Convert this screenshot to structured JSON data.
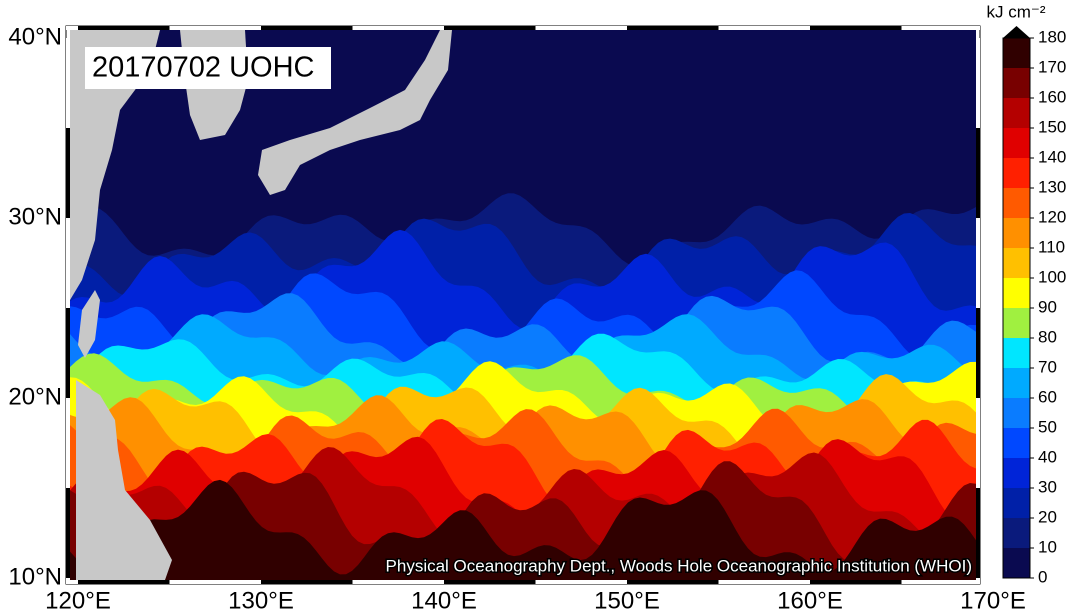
{
  "map": {
    "title": "20170702 UOHC",
    "latitude_labels": [
      "40°N",
      "30°N",
      "20°N",
      "10°N"
    ],
    "longitude_labels": [
      "120°E",
      "130°E",
      "140°E",
      "150°E",
      "160°E",
      "170°E"
    ],
    "colorbar": {
      "unit": "kJ cm⁻²",
      "ticks": [
        0,
        10,
        20,
        30,
        40,
        50,
        60,
        70,
        80,
        90,
        100,
        110,
        120,
        130,
        140,
        150,
        160,
        170,
        180
      ],
      "colors": [
        "#0a0a50",
        "#0a1a7c",
        "#0020a8",
        "#0024d8",
        "#0048ff",
        "#0a7cff",
        "#00aaff",
        "#00e6ff",
        "#a0f040",
        "#ffff00",
        "#ffc000",
        "#ff9000",
        "#ff5a00",
        "#ff2000",
        "#e00000",
        "#b40000",
        "#780000",
        "#300000"
      ],
      "over_color": "#000000"
    },
    "credit": "Physical Oceanography Dept., Woods Hole Oceanographic Institution (WHOI)"
  }
}
